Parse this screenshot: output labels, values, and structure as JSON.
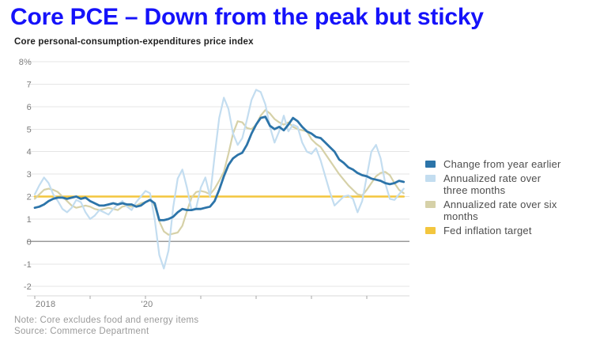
{
  "page": {
    "title": "Core PCE – Down from the peak but sticky",
    "subtitle": "Core personal-consumption-expenditures price index",
    "note": "Note: Core excludes food and energy items",
    "source": "Source: Commerce Department"
  },
  "colors": {
    "title": "#1512fa",
    "subtitle": "#202020",
    "grid": "#e5e5e5",
    "zero_line": "#9a9a9a",
    "axis_line": "#d9d9d9",
    "tick_mark": "#a6a6a6",
    "axis_label": "#7e7e7e",
    "legend_text": "#4d4d4d",
    "note_text": "#9a9a9a",
    "yoy_line": "#2c74a9",
    "three_month_line": "#c3ddf0",
    "six_month_line": "#d6d1a8",
    "target_line": "#f3c63e"
  },
  "legend": {
    "items": [
      {
        "label": "Change from year earlier",
        "color": "#2c74a9"
      },
      {
        "label": "Annualized rate over\nthree months",
        "color": "#c3ddf0"
      },
      {
        "label": "Annualized rate over six\nmonths",
        "color": "#d6d1a8"
      },
      {
        "label": "Fed inflation target",
        "color": "#f3c63e"
      }
    ]
  },
  "chart_data": {
    "type": "line",
    "title": "Core personal-consumption-expenditures price index",
    "xlabel": "",
    "ylabel": "percent",
    "x_start": "2018-01",
    "x_end": "2024-09",
    "x_frequency": "monthly",
    "ylim": [
      -2,
      8
    ],
    "grid": true,
    "legend_position": "right",
    "yticks": [
      {
        "value": 8,
        "label": "8%"
      },
      {
        "value": 7,
        "label": "7"
      },
      {
        "value": 6,
        "label": "6"
      },
      {
        "value": 5,
        "label": "5"
      },
      {
        "value": 4,
        "label": "4"
      },
      {
        "value": 3,
        "label": "3"
      },
      {
        "value": 2,
        "label": "2"
      },
      {
        "value": 1,
        "label": "1"
      },
      {
        "value": 0,
        "label": "0"
      },
      {
        "value": -1,
        "label": "-1"
      },
      {
        "value": -2,
        "label": "-2"
      }
    ],
    "xticks": [
      {
        "year": 2018,
        "label": "2018"
      },
      {
        "year": 2019,
        "label": ""
      },
      {
        "year": 2020,
        "label": "'20"
      },
      {
        "year": 2021,
        "label": ""
      },
      {
        "year": 2022,
        "label": ""
      },
      {
        "year": 2023,
        "label": ""
      },
      {
        "year": 2024,
        "label": ""
      }
    ],
    "series": [
      {
        "name": "Change from year earlier",
        "color": "#2c74a9",
        "stroke_width": 2.8,
        "values": [
          1.5,
          1.55,
          1.65,
          1.8,
          1.9,
          1.95,
          1.95,
          1.9,
          1.95,
          2.0,
          1.9,
          1.95,
          1.8,
          1.7,
          1.6,
          1.6,
          1.65,
          1.7,
          1.65,
          1.7,
          1.65,
          1.65,
          1.55,
          1.6,
          1.75,
          1.85,
          1.7,
          0.95,
          0.95,
          1.0,
          1.1,
          1.3,
          1.45,
          1.4,
          1.4,
          1.45,
          1.45,
          1.5,
          1.55,
          1.8,
          2.3,
          2.9,
          3.4,
          3.7,
          3.85,
          3.95,
          4.3,
          4.8,
          5.2,
          5.5,
          5.55,
          5.15,
          5.0,
          5.1,
          4.95,
          5.2,
          5.5,
          5.35,
          5.1,
          4.9,
          4.8,
          4.65,
          4.6,
          4.4,
          4.2,
          4.0,
          3.65,
          3.5,
          3.3,
          3.2,
          3.05,
          2.95,
          2.9,
          2.8,
          2.75,
          2.7,
          2.6,
          2.55,
          2.6,
          2.7,
          2.65
        ]
      },
      {
        "name": "Annualized rate over three months",
        "color": "#c3ddf0",
        "stroke_width": 2.2,
        "values": [
          2.1,
          2.5,
          2.85,
          2.6,
          2.1,
          1.8,
          1.45,
          1.3,
          1.5,
          1.85,
          1.75,
          1.3,
          1.0,
          1.15,
          1.4,
          1.3,
          1.2,
          1.45,
          1.65,
          1.8,
          1.55,
          1.4,
          1.75,
          2.0,
          2.25,
          2.15,
          1.0,
          -0.6,
          -1.2,
          -0.4,
          1.5,
          2.8,
          3.2,
          2.4,
          1.4,
          1.5,
          2.4,
          2.85,
          2.0,
          3.8,
          5.5,
          6.4,
          5.9,
          4.8,
          4.3,
          4.6,
          5.4,
          6.3,
          6.75,
          6.65,
          6.1,
          5.1,
          4.4,
          4.9,
          5.6,
          4.9,
          5.2,
          5.1,
          4.4,
          4.0,
          3.9,
          4.15,
          3.6,
          2.9,
          2.2,
          1.6,
          1.8,
          2.0,
          2.05,
          1.9,
          1.3,
          1.8,
          2.9,
          4.0,
          4.3,
          3.7,
          2.6,
          1.9,
          1.85,
          2.1,
          2.35
        ]
      },
      {
        "name": "Annualized rate over six months",
        "color": "#d6d1a8",
        "stroke_width": 2.2,
        "values": [
          1.9,
          2.1,
          2.3,
          2.35,
          2.3,
          2.2,
          2.0,
          1.8,
          1.6,
          1.5,
          1.55,
          1.6,
          1.55,
          1.45,
          1.4,
          1.45,
          1.5,
          1.45,
          1.4,
          1.55,
          1.6,
          1.55,
          1.6,
          1.7,
          1.75,
          1.85,
          1.6,
          0.9,
          0.45,
          0.3,
          0.35,
          0.4,
          0.7,
          1.35,
          1.95,
          2.2,
          2.25,
          2.2,
          2.1,
          2.35,
          2.7,
          3.1,
          3.9,
          4.8,
          5.35,
          5.3,
          5.05,
          5.0,
          5.2,
          5.6,
          5.85,
          5.7,
          5.45,
          5.3,
          5.2,
          5.3,
          5.1,
          5.0,
          4.95,
          4.9,
          4.55,
          4.35,
          4.2,
          3.9,
          3.6,
          3.3,
          3.0,
          2.75,
          2.5,
          2.3,
          2.1,
          2.05,
          2.3,
          2.6,
          2.9,
          3.05,
          3.1,
          2.95,
          2.6,
          2.3,
          2.15
        ]
      },
      {
        "name": "Fed inflation target",
        "color": "#f3c63e",
        "stroke_width": 2.6,
        "constant": 2
      }
    ]
  }
}
